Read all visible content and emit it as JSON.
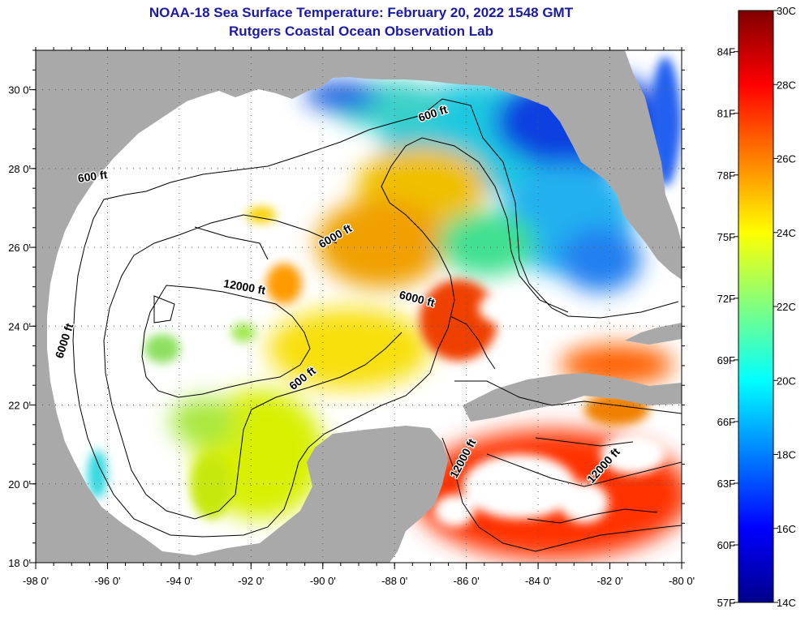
{
  "title": "NOAA-18 Sea Surface Temperature:  February 20, 2022 1548 GMT",
  "subtitle": "Rutgers Coastal Ocean Observation Lab",
  "map": {
    "lon_labels": [
      "-98 0'",
      "-96 0'",
      "-94 0'",
      "-92 0'",
      "-90 0'",
      "-88 0'",
      "-86 0'",
      "-84 0'",
      "-82 0'",
      "-80 0'"
    ],
    "lon_values": [
      -98,
      -96,
      -94,
      -92,
      -90,
      -88,
      -86,
      -84,
      -82,
      -80
    ],
    "lat_labels": [
      "30 0'",
      "28 0'",
      "26 0'",
      "24 0'",
      "22 0'",
      "20 0'",
      "18 0'"
    ],
    "lat_values": [
      30,
      28,
      26,
      24,
      22,
      20,
      18
    ],
    "lon_range": [
      -98,
      -80
    ],
    "lat_range": [
      18,
      31
    ],
    "grid": "dotted",
    "colors": {
      "land": "#a9a9a9",
      "cloud": "#ffffff",
      "frame": "#000000"
    },
    "contour_labels": [
      {
        "text": "600 ft",
        "lon": -86.9,
        "lat": 29.3,
        "angle": -18
      },
      {
        "text": "600 ft",
        "lon": -96.4,
        "lat": 27.7,
        "angle": -8
      },
      {
        "text": "6000 ft",
        "lon": -89.6,
        "lat": 26.2,
        "angle": -30
      },
      {
        "text": "12000 ft",
        "lon": -92.2,
        "lat": 24.9,
        "angle": 10
      },
      {
        "text": "6000 ft",
        "lon": -87.4,
        "lat": 24.6,
        "angle": 14
      },
      {
        "text": "6000 ft",
        "lon": -97.1,
        "lat": 23.6,
        "angle": -72
      },
      {
        "text": "600 ft",
        "lon": -90.5,
        "lat": 22.6,
        "angle": -38
      },
      {
        "text": "12000 ft",
        "lon": -86.0,
        "lat": 20.6,
        "angle": -62
      },
      {
        "text": "12000 ft",
        "lon": -82.1,
        "lat": 20.4,
        "angle": -48
      }
    ]
  },
  "colorbar": {
    "c_labels": [
      "30C",
      "28C",
      "26C",
      "24C",
      "22C",
      "20C",
      "18C",
      "16C",
      "14C"
    ],
    "c_values": [
      30,
      28,
      26,
      24,
      22,
      20,
      18,
      16,
      14
    ],
    "f_labels": [
      "84F",
      "81F",
      "78F",
      "75F",
      "72F",
      "69F",
      "66F",
      "63F",
      "60F",
      "57F"
    ],
    "f_values": [
      84,
      81,
      78,
      75,
      72,
      69,
      66,
      63,
      60,
      57
    ],
    "range_c": [
      14,
      30
    ],
    "palette": [
      "#00008b",
      "#0000ff",
      "#0080ff",
      "#00ffff",
      "#80ff80",
      "#ffff00",
      "#ff8000",
      "#ff0000",
      "#800000"
    ]
  }
}
